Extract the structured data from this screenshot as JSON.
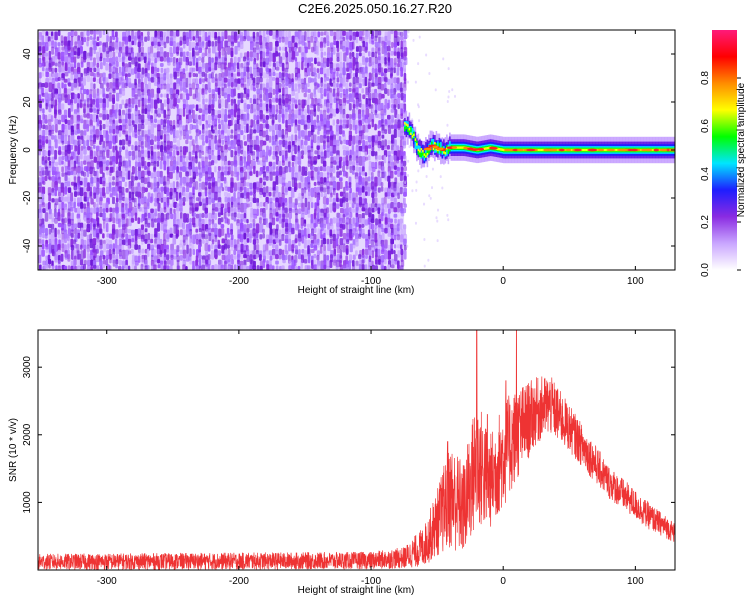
{
  "title": "C2E6.2025.050.16.27.R20",
  "chart_data": [
    {
      "type": "heatmap",
      "xlabel": "Height of straight line (km)",
      "ylabel": "Frequency (Hz)",
      "xlim": [
        -352,
        130
      ],
      "ylim": [
        -50,
        50
      ],
      "xticks": [
        -300,
        -200,
        -100,
        0,
        100
      ],
      "yticks": [
        -40,
        -20,
        0,
        20,
        40
      ],
      "colorbar": {
        "label": "Normalized spectral amplitude",
        "range": [
          0,
          1
        ],
        "ticks": [
          "0.0",
          "0.2",
          "0.4",
          "0.6",
          "0.8"
        ],
        "colors": [
          "#ffffff",
          "#c9a6ff",
          "#8a2be2",
          "#1e1eff",
          "#00e5ff",
          "#00ff00",
          "#ffff00",
          "#ff8c00",
          "#ff0000",
          "#ff1a7a"
        ]
      },
      "noise_region": {
        "x_range": [
          -352,
          -75
        ],
        "freq_range": [
          -50,
          50
        ]
      },
      "signal_track": {
        "x_range": [
          -75,
          130
        ],
        "center_frequency": [
          {
            "x": -75,
            "f": 10
          },
          {
            "x": -70,
            "f": 8
          },
          {
            "x": -65,
            "f": 0
          },
          {
            "x": -60,
            "f": -2
          },
          {
            "x": -55,
            "f": 2
          },
          {
            "x": -50,
            "f": 1
          },
          {
            "x": -45,
            "f": 0
          },
          {
            "x": -40,
            "f": 1
          },
          {
            "x": -30,
            "f": 1
          },
          {
            "x": -20,
            "f": 0
          },
          {
            "x": -10,
            "f": 1
          },
          {
            "x": 0,
            "f": 0
          },
          {
            "x": 130,
            "f": 0
          }
        ]
      }
    },
    {
      "type": "line",
      "xlabel": "Height of straight line (km)",
      "ylabel": "SNR (10 * v/v)",
      "xlim": [
        -352,
        130
      ],
      "ylim": [
        0,
        3550
      ],
      "xticks": [
        -300,
        -200,
        -100,
        0,
        100
      ],
      "yticks": [
        1000,
        2000,
        3000
      ],
      "color": "#ee3333",
      "series": [
        {
          "envelope": [
            {
              "x": -352,
              "base": 120,
              "amp": 120
            },
            {
              "x": -100,
              "base": 140,
              "amp": 130
            },
            {
              "x": -75,
              "base": 180,
              "amp": 160
            },
            {
              "x": -60,
              "base": 350,
              "amp": 300
            },
            {
              "x": -50,
              "base": 700,
              "amp": 500
            },
            {
              "x": -40,
              "base": 1100,
              "amp": 800
            },
            {
              "x": -30,
              "base": 900,
              "amp": 700
            },
            {
              "x": -20,
              "base": 1600,
              "amp": 1000
            },
            {
              "x": -10,
              "base": 1300,
              "amp": 700
            },
            {
              "x": 0,
              "base": 1700,
              "amp": 800
            },
            {
              "x": 10,
              "base": 2000,
              "amp": 700
            },
            {
              "x": 25,
              "base": 2350,
              "amp": 500
            },
            {
              "x": 35,
              "base": 2450,
              "amp": 450
            },
            {
              "x": 50,
              "base": 2100,
              "amp": 350
            },
            {
              "x": 80,
              "base": 1300,
              "amp": 250
            },
            {
              "x": 110,
              "base": 800,
              "amp": 200
            },
            {
              "x": 130,
              "base": 550,
              "amp": 150
            }
          ],
          "spikes": [
            {
              "x": -42,
              "y": 1900
            },
            {
              "x": -20,
              "y": 3550
            },
            {
              "x": -12,
              "y": 2300
            },
            {
              "x": 10,
              "y": 3550
            },
            {
              "x": 2,
              "y": 2800
            }
          ]
        }
      ]
    }
  ]
}
